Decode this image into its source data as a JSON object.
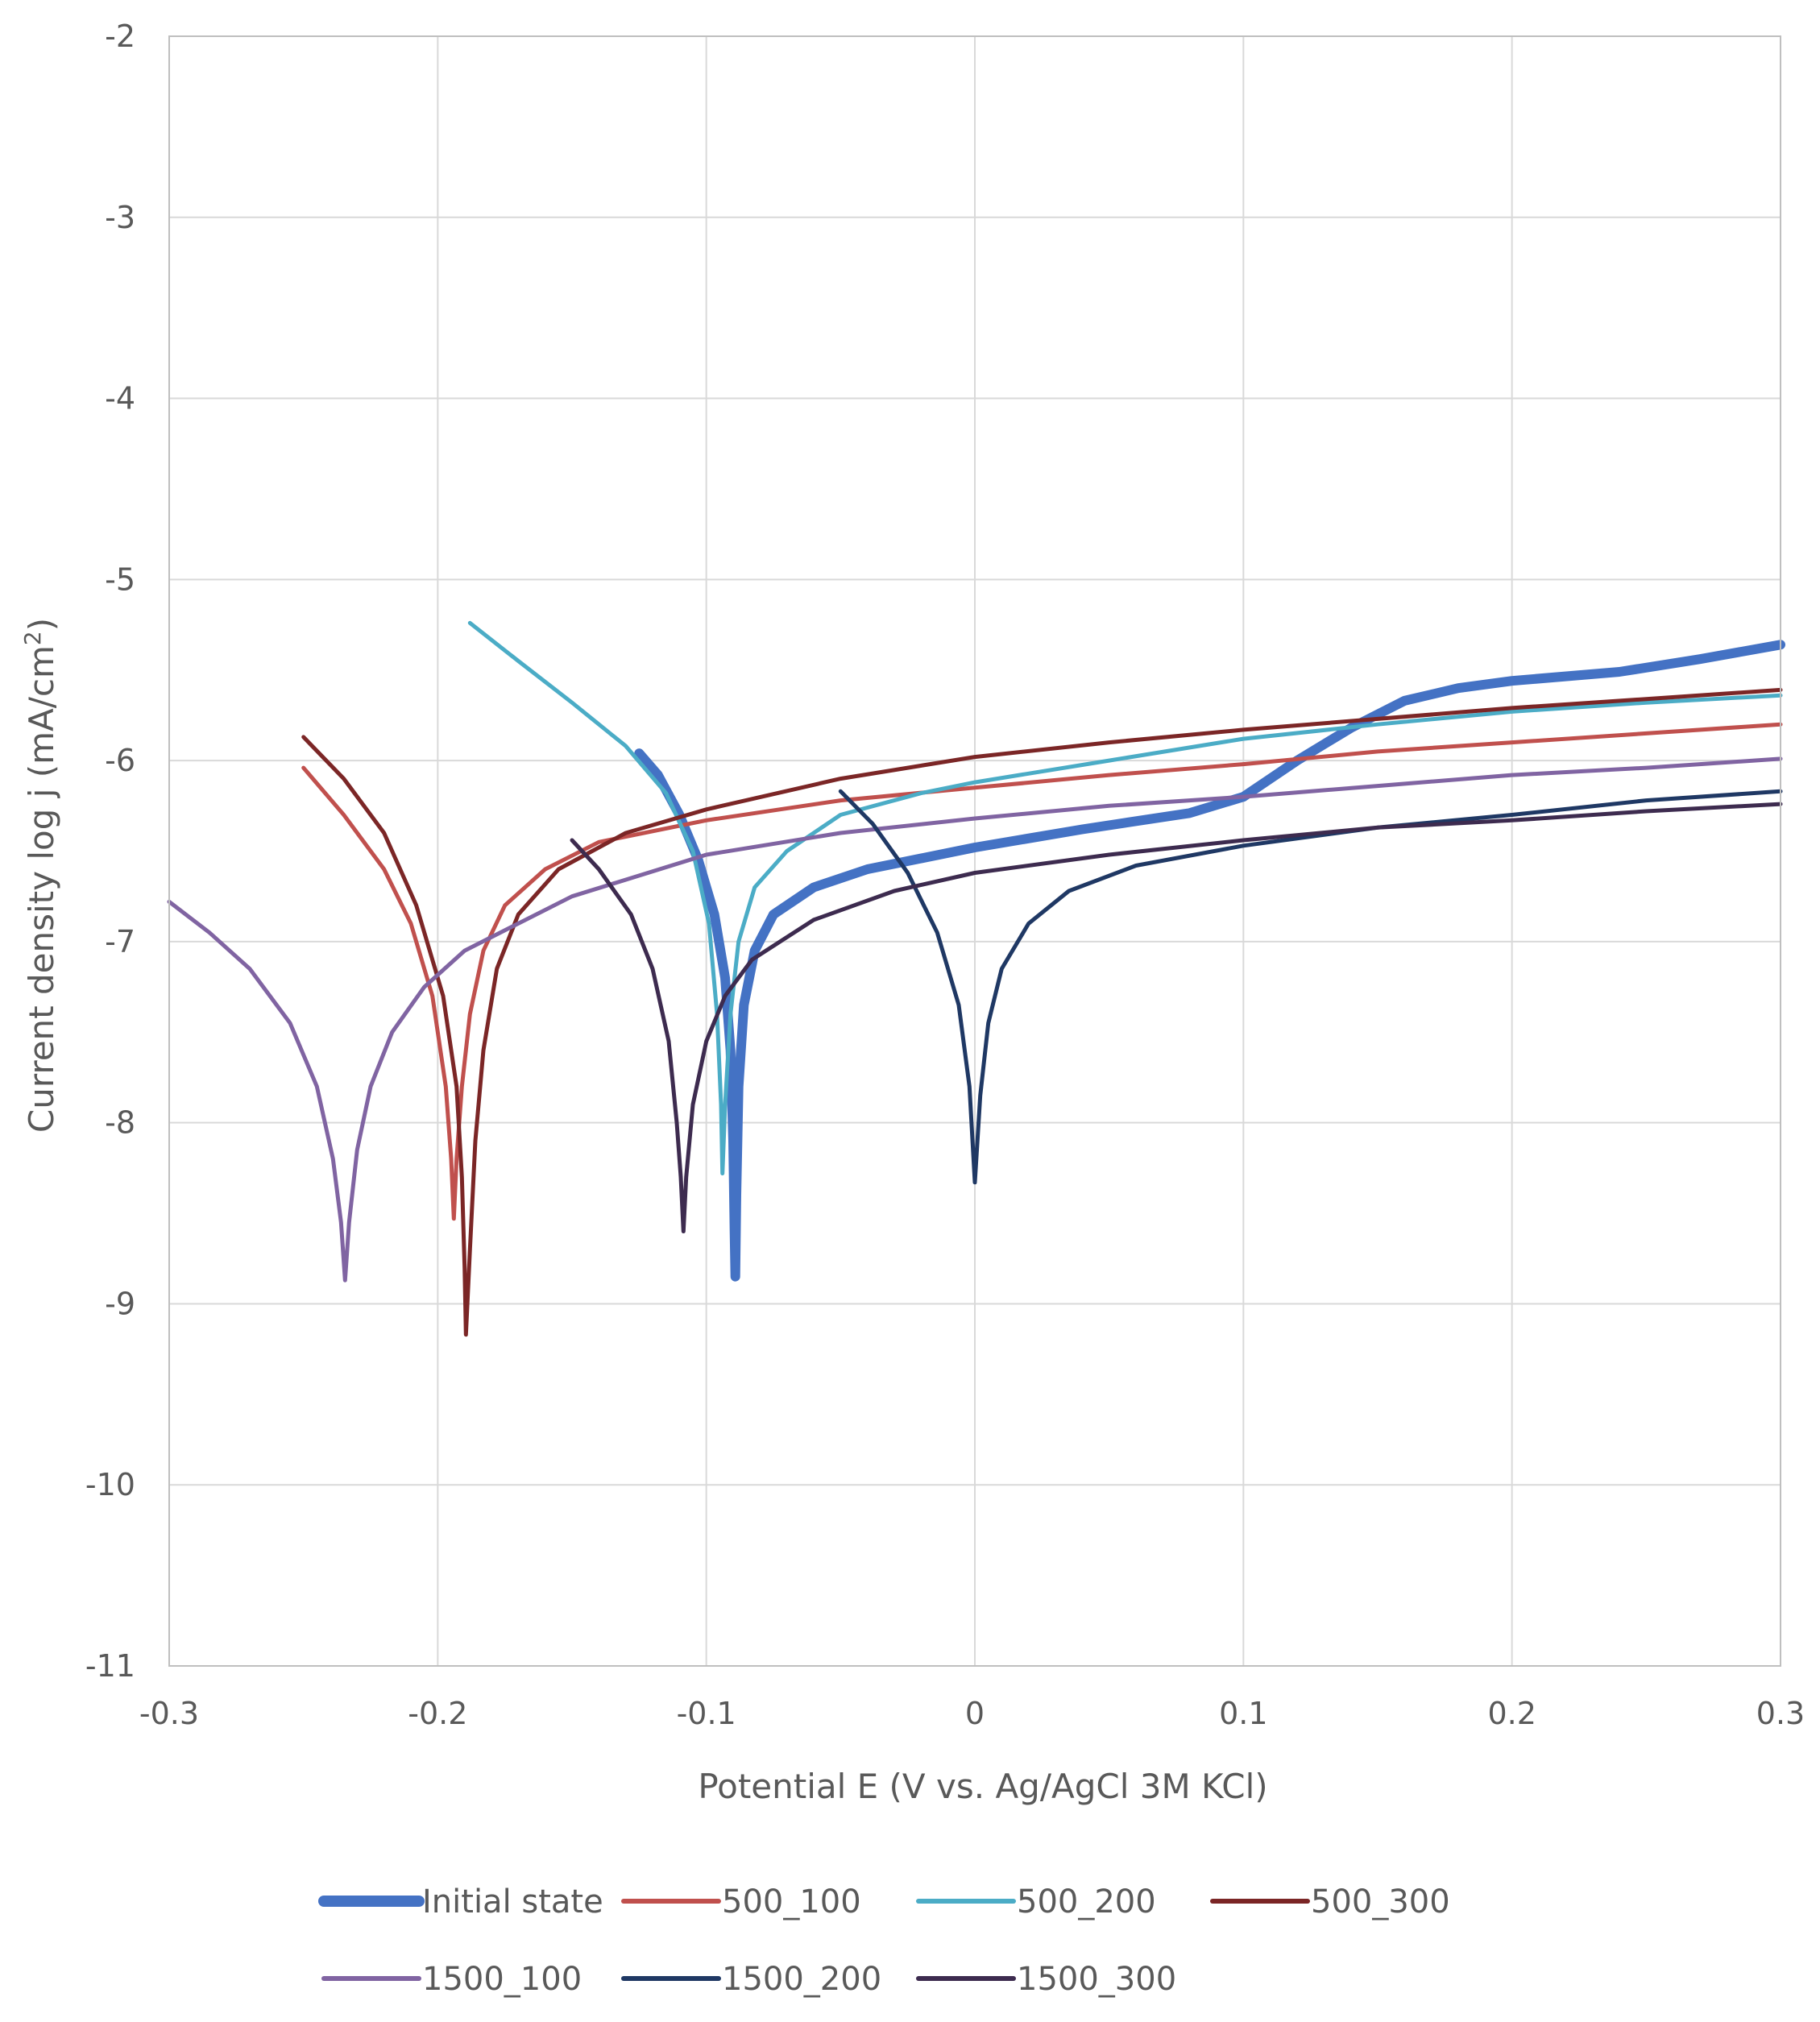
{
  "chart_data": {
    "type": "line",
    "title": "",
    "xlabel": "Potential E (V vs. Ag/AgCl 3M KCl)",
    "ylabel": "Current density log j (mA/cm",
    "ylabel_sup": "2",
    "ylabel_end": ")",
    "xlim": [
      -0.3,
      0.3
    ],
    "ylim": [
      -11,
      -2
    ],
    "x_ticks": [
      -0.3,
      -0.2,
      -0.1,
      0,
      0.1,
      0.2,
      0.3
    ],
    "x_tick_labels": [
      "-0.3",
      "-0.2",
      "-0.1",
      "0",
      "0.1",
      "0.2",
      "0.3"
    ],
    "y_ticks": [
      -2,
      -3,
      -4,
      -5,
      -6,
      -7,
      -8,
      -9,
      -10,
      -11
    ],
    "y_tick_labels": [
      "-2",
      "-3",
      "-4",
      "-5",
      "-6",
      "-7",
      "-8",
      "-9",
      "-10",
      "-11"
    ],
    "grid": true,
    "legend_position": "bottom",
    "series": [
      {
        "name": "Initial state",
        "color": "#4472c4",
        "width": 12,
        "points": [
          [
            -0.125,
            -5.96
          ],
          [
            -0.118,
            -6.08
          ],
          [
            -0.11,
            -6.3
          ],
          [
            -0.103,
            -6.55
          ],
          [
            -0.097,
            -6.85
          ],
          [
            -0.093,
            -7.2
          ],
          [
            -0.091,
            -7.6
          ],
          [
            -0.09,
            -8.1
          ],
          [
            -0.0895,
            -8.6
          ],
          [
            -0.0892,
            -8.85
          ],
          [
            -0.0888,
            -8.4
          ],
          [
            -0.088,
            -7.8
          ],
          [
            -0.086,
            -7.35
          ],
          [
            -0.082,
            -7.05
          ],
          [
            -0.075,
            -6.85
          ],
          [
            -0.06,
            -6.7
          ],
          [
            -0.04,
            -6.6
          ],
          [
            0,
            -6.48
          ],
          [
            0.04,
            -6.38
          ],
          [
            0.08,
            -6.29
          ],
          [
            0.1,
            -6.2
          ],
          [
            0.12,
            -6.0
          ],
          [
            0.14,
            -5.82
          ],
          [
            0.16,
            -5.67
          ],
          [
            0.18,
            -5.6
          ],
          [
            0.2,
            -5.56
          ],
          [
            0.24,
            -5.51
          ],
          [
            0.27,
            -5.44
          ],
          [
            0.3,
            -5.36
          ]
        ]
      },
      {
        "name": "500_100",
        "color": "#c0504d",
        "width": 5,
        "points": [
          [
            -0.25,
            -6.04
          ],
          [
            -0.235,
            -6.3
          ],
          [
            -0.22,
            -6.6
          ],
          [
            -0.21,
            -6.9
          ],
          [
            -0.202,
            -7.3
          ],
          [
            -0.197,
            -7.8
          ],
          [
            -0.195,
            -8.2
          ],
          [
            -0.194,
            -8.53
          ],
          [
            -0.193,
            -8.2
          ],
          [
            -0.191,
            -7.8
          ],
          [
            -0.188,
            -7.4
          ],
          [
            -0.183,
            -7.05
          ],
          [
            -0.175,
            -6.8
          ],
          [
            -0.16,
            -6.6
          ],
          [
            -0.14,
            -6.45
          ],
          [
            -0.1,
            -6.33
          ],
          [
            -0.05,
            -6.22
          ],
          [
            0,
            -6.15
          ],
          [
            0.05,
            -6.08
          ],
          [
            0.1,
            -6.02
          ],
          [
            0.15,
            -5.95
          ],
          [
            0.2,
            -5.9
          ],
          [
            0.25,
            -5.85
          ],
          [
            0.3,
            -5.8
          ]
        ]
      },
      {
        "name": "500_200",
        "color": "#4bacc6",
        "width": 5,
        "points": [
          [
            -0.188,
            -5.24
          ],
          [
            -0.17,
            -5.45
          ],
          [
            -0.15,
            -5.68
          ],
          [
            -0.13,
            -5.92
          ],
          [
            -0.115,
            -6.18
          ],
          [
            -0.105,
            -6.5
          ],
          [
            -0.099,
            -6.9
          ],
          [
            -0.096,
            -7.4
          ],
          [
            -0.0945,
            -7.9
          ],
          [
            -0.094,
            -8.28
          ],
          [
            -0.093,
            -7.9
          ],
          [
            -0.091,
            -7.4
          ],
          [
            -0.088,
            -7.0
          ],
          [
            -0.082,
            -6.7
          ],
          [
            -0.07,
            -6.5
          ],
          [
            -0.05,
            -6.3
          ],
          [
            -0.02,
            -6.18
          ],
          [
            0,
            -6.12
          ],
          [
            0.05,
            -6.0
          ],
          [
            0.1,
            -5.88
          ],
          [
            0.15,
            -5.8
          ],
          [
            0.2,
            -5.73
          ],
          [
            0.25,
            -5.68
          ],
          [
            0.3,
            -5.64
          ]
        ]
      },
      {
        "name": "500_300",
        "color": "#7b2626",
        "width": 5,
        "points": [
          [
            -0.25,
            -5.87
          ],
          [
            -0.235,
            -6.1
          ],
          [
            -0.22,
            -6.4
          ],
          [
            -0.208,
            -6.8
          ],
          [
            -0.198,
            -7.3
          ],
          [
            -0.193,
            -7.8
          ],
          [
            -0.191,
            -8.3
          ],
          [
            -0.19,
            -8.8
          ],
          [
            -0.1895,
            -9.17
          ],
          [
            -0.188,
            -8.7
          ],
          [
            -0.186,
            -8.1
          ],
          [
            -0.183,
            -7.6
          ],
          [
            -0.178,
            -7.15
          ],
          [
            -0.17,
            -6.85
          ],
          [
            -0.155,
            -6.6
          ],
          [
            -0.13,
            -6.4
          ],
          [
            -0.1,
            -6.27
          ],
          [
            -0.05,
            -6.1
          ],
          [
            0,
            -5.98
          ],
          [
            0.05,
            -5.9
          ],
          [
            0.1,
            -5.83
          ],
          [
            0.15,
            -5.77
          ],
          [
            0.2,
            -5.71
          ],
          [
            0.25,
            -5.66
          ],
          [
            0.3,
            -5.61
          ]
        ]
      },
      {
        "name": "1500_100",
        "color": "#8064a2",
        "width": 5,
        "points": [
          [
            -0.3,
            -6.78
          ],
          [
            -0.285,
            -6.95
          ],
          [
            -0.27,
            -7.15
          ],
          [
            -0.255,
            -7.45
          ],
          [
            -0.245,
            -7.8
          ],
          [
            -0.239,
            -8.2
          ],
          [
            -0.236,
            -8.55
          ],
          [
            -0.2345,
            -8.87
          ],
          [
            -0.233,
            -8.55
          ],
          [
            -0.23,
            -8.15
          ],
          [
            -0.225,
            -7.8
          ],
          [
            -0.217,
            -7.5
          ],
          [
            -0.205,
            -7.25
          ],
          [
            -0.19,
            -7.05
          ],
          [
            -0.17,
            -6.9
          ],
          [
            -0.15,
            -6.75
          ],
          [
            -0.1,
            -6.52
          ],
          [
            -0.05,
            -6.4
          ],
          [
            0,
            -6.32
          ],
          [
            0.05,
            -6.25
          ],
          [
            0.1,
            -6.2
          ],
          [
            0.15,
            -6.14
          ],
          [
            0.2,
            -6.08
          ],
          [
            0.25,
            -6.04
          ],
          [
            0.3,
            -5.99
          ]
        ]
      },
      {
        "name": "1500_200",
        "color": "#1f3864",
        "width": 5,
        "points": [
          [
            -0.05,
            -6.17
          ],
          [
            -0.038,
            -6.35
          ],
          [
            -0.025,
            -6.62
          ],
          [
            -0.014,
            -6.95
          ],
          [
            -0.006,
            -7.35
          ],
          [
            -0.002,
            -7.8
          ],
          [
            0,
            -8.33
          ],
          [
            0.002,
            -7.85
          ],
          [
            0.005,
            -7.45
          ],
          [
            0.01,
            -7.15
          ],
          [
            0.02,
            -6.9
          ],
          [
            0.035,
            -6.72
          ],
          [
            0.06,
            -6.58
          ],
          [
            0.1,
            -6.47
          ],
          [
            0.15,
            -6.37
          ],
          [
            0.2,
            -6.3
          ],
          [
            0.25,
            -6.22
          ],
          [
            0.3,
            -6.17
          ]
        ]
      },
      {
        "name": "1500_300",
        "color": "#3d2b4f",
        "width": 5,
        "points": [
          [
            -0.15,
            -6.44
          ],
          [
            -0.14,
            -6.6
          ],
          [
            -0.128,
            -6.85
          ],
          [
            -0.12,
            -7.15
          ],
          [
            -0.114,
            -7.55
          ],
          [
            -0.111,
            -8.0
          ],
          [
            -0.1095,
            -8.3
          ],
          [
            -0.1085,
            -8.6
          ],
          [
            -0.1075,
            -8.3
          ],
          [
            -0.105,
            -7.9
          ],
          [
            -0.1,
            -7.55
          ],
          [
            -0.093,
            -7.3
          ],
          [
            -0.083,
            -7.1
          ],
          [
            -0.06,
            -6.88
          ],
          [
            -0.03,
            -6.72
          ],
          [
            0,
            -6.62
          ],
          [
            0.05,
            -6.52
          ],
          [
            0.1,
            -6.44
          ],
          [
            0.15,
            -6.37
          ],
          [
            0.2,
            -6.33
          ],
          [
            0.25,
            -6.28
          ],
          [
            0.3,
            -6.24
          ]
        ]
      }
    ]
  }
}
